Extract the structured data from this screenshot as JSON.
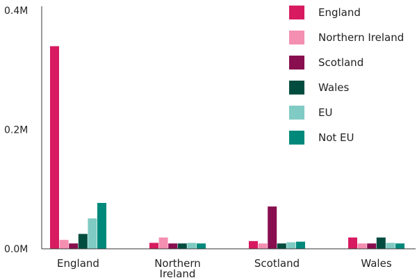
{
  "chart_data": {
    "type": "bar",
    "categories": [
      [
        "England"
      ],
      [
        "Northern",
        "Ireland"
      ],
      [
        "Scotland"
      ],
      [
        "Wales"
      ]
    ],
    "series": [
      {
        "name": "England",
        "color": "#d81b60",
        "values": [
          340000,
          10000,
          13000,
          19000
        ]
      },
      {
        "name": "Northern Ireland",
        "color": "#f48fb1",
        "values": [
          15000,
          19000,
          9000,
          9000
        ]
      },
      {
        "name": "Scotland",
        "color": "#880e4f",
        "values": [
          9000,
          9000,
          71000,
          9000
        ]
      },
      {
        "name": "Wales",
        "color": "#004d40",
        "values": [
          25000,
          9000,
          9000,
          19000
        ]
      },
      {
        "name": "EU",
        "color": "#80cbc4",
        "values": [
          51000,
          10000,
          11000,
          10000
        ]
      },
      {
        "name": "Not EU",
        "color": "#00897b",
        "values": [
          77000,
          9000,
          12000,
          9000
        ]
      }
    ],
    "ylim": [
      0,
      400000
    ],
    "yticks": [
      {
        "value": 0,
        "label": "0.0M"
      },
      {
        "value": 200000,
        "label": "0.2M"
      },
      {
        "value": 400000,
        "label": "0.4M"
      }
    ],
    "legend_position": "top-right",
    "grid": false,
    "title": "",
    "xlabel": "",
    "ylabel": ""
  }
}
